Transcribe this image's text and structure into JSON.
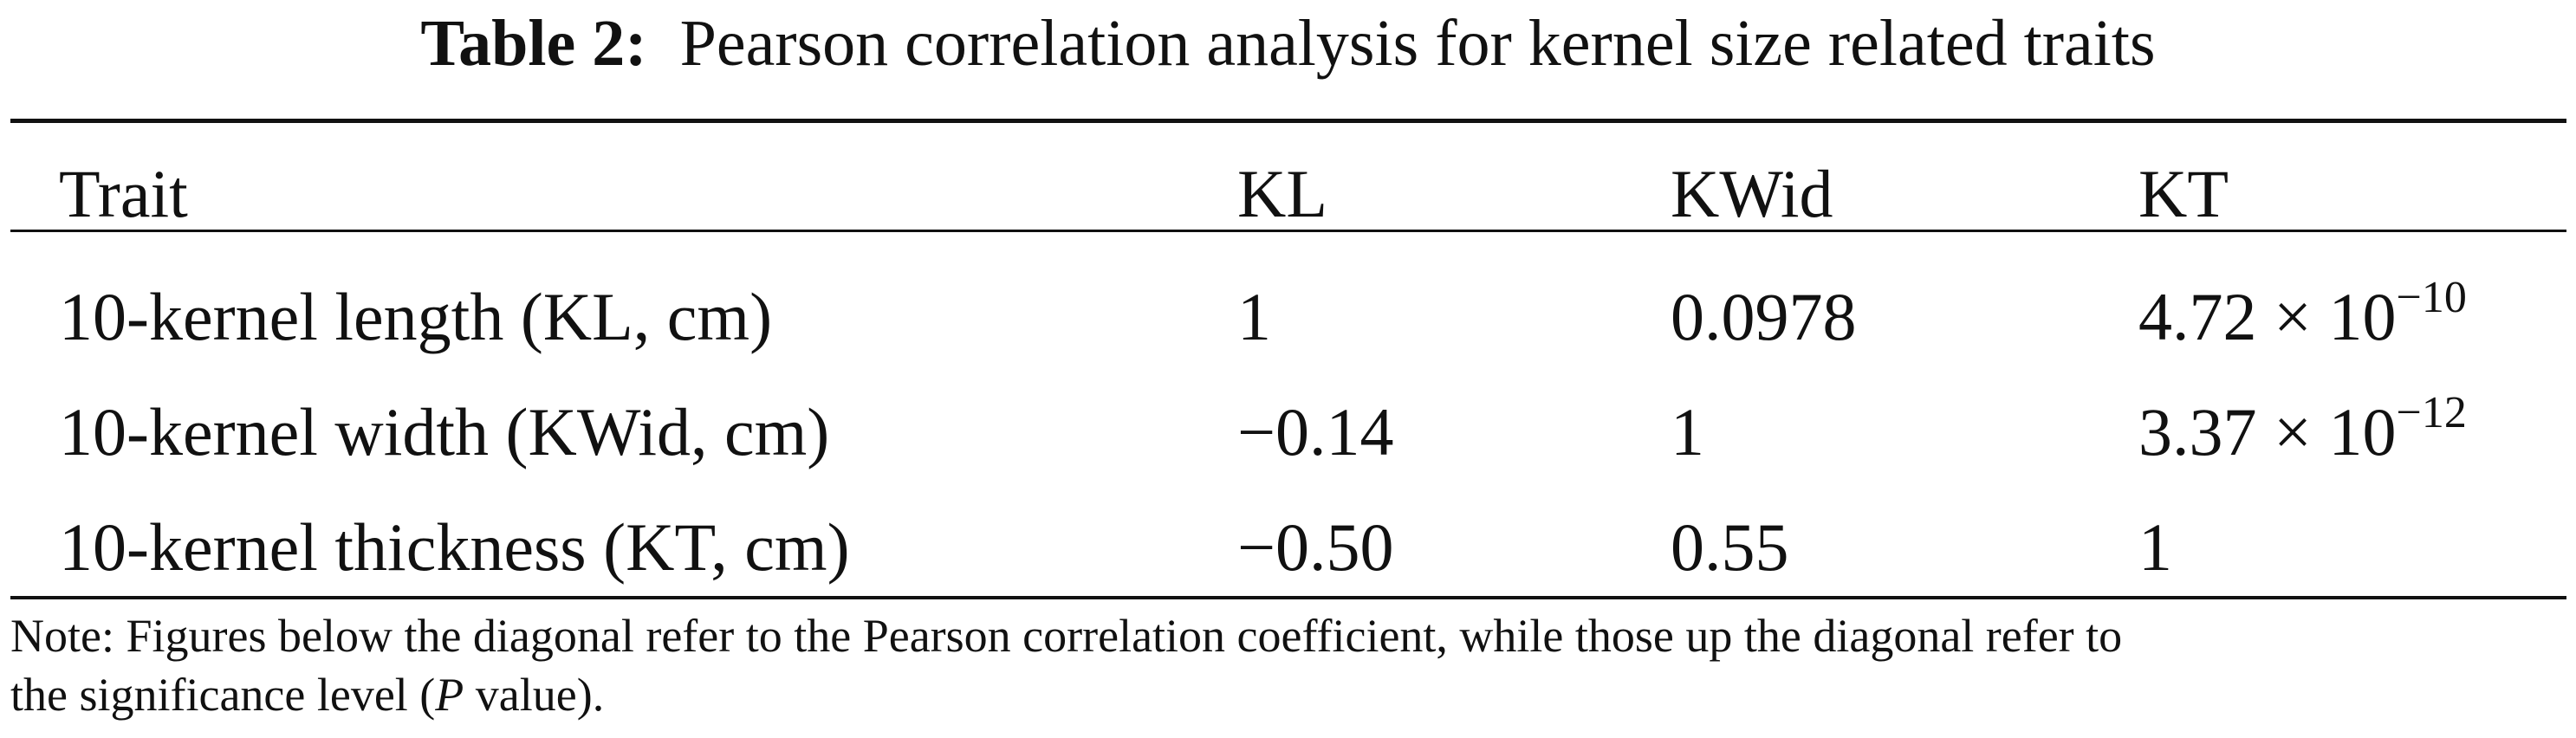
{
  "caption": {
    "label": "Table 2:",
    "text": "Pearson correlation analysis for kernel size related traits"
  },
  "table": {
    "headers": [
      "Trait",
      "KL",
      "KWid",
      "KT"
    ],
    "rows": [
      {
        "trait": "10-kernel length (KL, cm)",
        "kl": "1",
        "kwid": "0.0978",
        "kt_base": "4.72 × 10",
        "kt_exp": "−10"
      },
      {
        "trait": "10-kernel width (KWid, cm)",
        "kl": "−0.14",
        "kwid": "1",
        "kt_base": "3.37 × 10",
        "kt_exp": "−12"
      },
      {
        "trait": "10-kernel thickness (KT, cm)",
        "kl": "−0.50",
        "kwid": "0.55",
        "kt": "1"
      }
    ]
  },
  "note": {
    "line1": "Note: Figures below the diagonal refer to the Pearson correlation coefficient, while those up the diagonal refer to",
    "line2_pre": "the significance level (",
    "line2_italic": "P",
    "line2_post": " value)."
  }
}
